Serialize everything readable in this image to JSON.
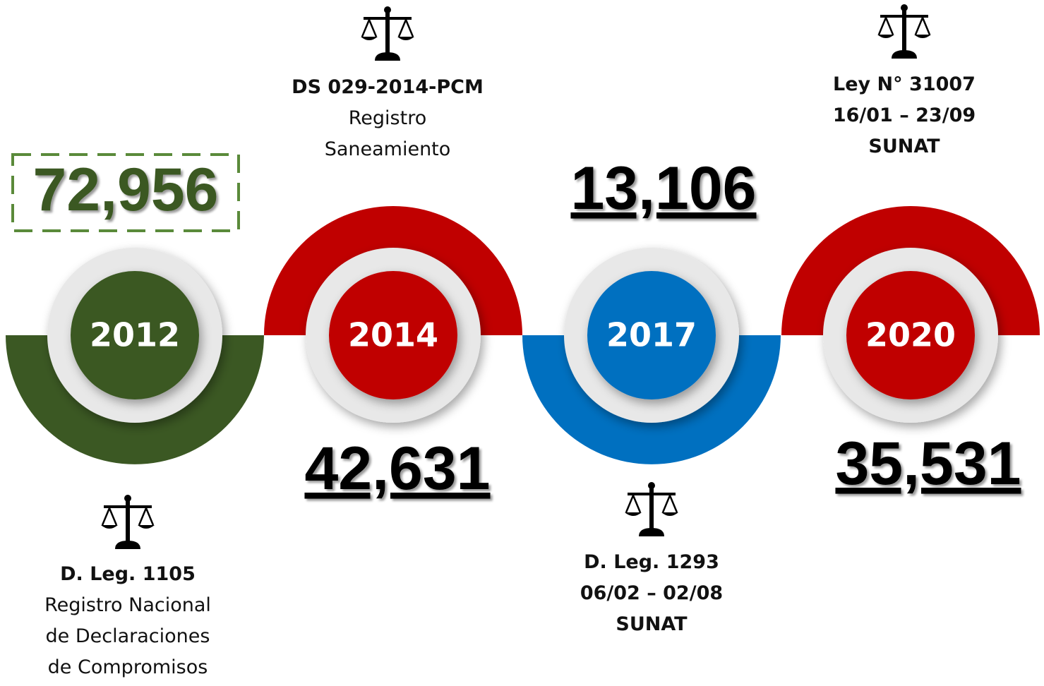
{
  "milestones": [
    {
      "year": "2012",
      "figure": "72,956",
      "law": {
        "title": "D. Leg. 1105",
        "lines": [
          "Registro Nacional",
          "de Declaraciones",
          "de Compromisos"
        ]
      }
    },
    {
      "year": "2014",
      "figure": "42,631",
      "law": {
        "title": "DS 029-2014-PCM",
        "lines": [
          "Registro",
          "Saneamiento"
        ]
      }
    },
    {
      "year": "2017",
      "figure": "13,106",
      "law": {
        "title": "D. Leg. 1293",
        "lines": [
          "06/02 – 02/08",
          "SUNAT"
        ]
      }
    },
    {
      "year": "2020",
      "figure": "35,531",
      "law": {
        "title": "Ley N° 31007",
        "lines": [
          "16/01 – 23/09",
          "SUNAT"
        ]
      }
    }
  ]
}
